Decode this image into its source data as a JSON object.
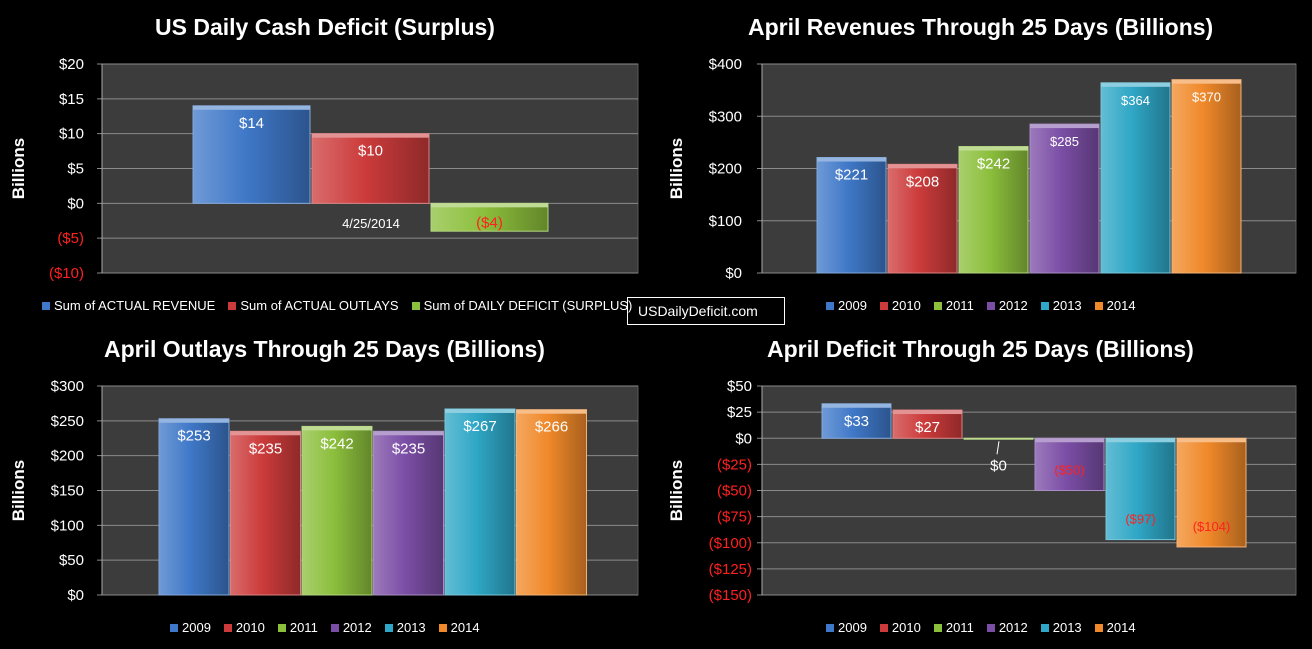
{
  "site_label": "USDailyDeficit.com",
  "colors": {
    "2009": "#3f78c8",
    "2010": "#cc3b3b",
    "2011": "#8cbf3c",
    "2012": "#7b4ea6",
    "2013": "#2fa7c6",
    "2014": "#f0892a",
    "negative_label": "#ff2020",
    "plot_bg": "#3c3c3c",
    "grid": "#8a8a8a"
  },
  "chart_data": [
    {
      "type": "bar",
      "title": "US Daily Cash Deficit (Surplus)",
      "ylabel": "Billions",
      "xlabel": "",
      "ylim": [
        -10,
        20
      ],
      "ticks": [
        20,
        15,
        10,
        5,
        0,
        -5,
        -10
      ],
      "tick_labels": [
        "$20",
        "$15",
        "$10",
        "$5",
        "$0",
        "($5)",
        "($10)"
      ],
      "categories": [
        "4/25/2014"
      ],
      "series": [
        {
          "name": "Sum of ACTUAL REVENUE",
          "values": [
            14
          ],
          "labels": [
            "$14"
          ],
          "color": "#3f78c8"
        },
        {
          "name": "Sum of ACTUAL OUTLAYS",
          "values": [
            10
          ],
          "labels": [
            "$10"
          ],
          "color": "#cc3b3b"
        },
        {
          "name": "Sum of DAILY DEFICIT (SURPLUS)",
          "values": [
            -4
          ],
          "labels": [
            "($4)"
          ],
          "color": "#8cbf3c"
        }
      ],
      "legend": "bottom"
    },
    {
      "type": "bar",
      "title": "April Revenues Through 25 Days (Billions)",
      "ylabel": "Billions",
      "xlabel": "",
      "ylim": [
        0,
        400
      ],
      "ticks": [
        400,
        300,
        200,
        100,
        0
      ],
      "tick_labels": [
        "$400",
        "$300",
        "$200",
        "$100",
        "$0"
      ],
      "categories": [
        "2009",
        "2010",
        "2011",
        "2012",
        "2013",
        "2014"
      ],
      "values": [
        221,
        208,
        242,
        285,
        364,
        370
      ],
      "labels": [
        "$221",
        "$208",
        "$242",
        "$285",
        "$364",
        "$370"
      ],
      "legend": "bottom"
    },
    {
      "type": "bar",
      "title": "April Outlays Through 25 Days (Billions)",
      "ylabel": "Billions",
      "xlabel": "",
      "ylim": [
        0,
        300
      ],
      "ticks": [
        300,
        250,
        200,
        150,
        100,
        50,
        0
      ],
      "tick_labels": [
        "$300",
        "$250",
        "$200",
        "$150",
        "$100",
        "$50",
        "$0"
      ],
      "categories": [
        "2009",
        "2010",
        "2011",
        "2012",
        "2013",
        "2014"
      ],
      "values": [
        253,
        235,
        242,
        235,
        267,
        266
      ],
      "labels": [
        "$253",
        "$235",
        "$242",
        "$235",
        "$267",
        "$266"
      ],
      "legend": "bottom"
    },
    {
      "type": "bar",
      "title": "April Deficit Through 25 Days (Billions)",
      "ylabel": "Billions",
      "xlabel": "",
      "ylim": [
        -150,
        50
      ],
      "ticks": [
        50,
        25,
        0,
        -25,
        -50,
        -75,
        -100,
        -125,
        -150
      ],
      "tick_labels": [
        "$50",
        "$25",
        "$0",
        "($25)",
        "($50)",
        "($75)",
        "($100)",
        "($125)",
        "($150)"
      ],
      "categories": [
        "2009",
        "2010",
        "2011",
        "2012",
        "2013",
        "2014"
      ],
      "values": [
        33,
        27,
        0,
        -50,
        -97,
        -104
      ],
      "labels": [
        "$33",
        "$27",
        "$0",
        "($50)",
        "($97)",
        "($104)"
      ],
      "legend": "bottom"
    }
  ]
}
